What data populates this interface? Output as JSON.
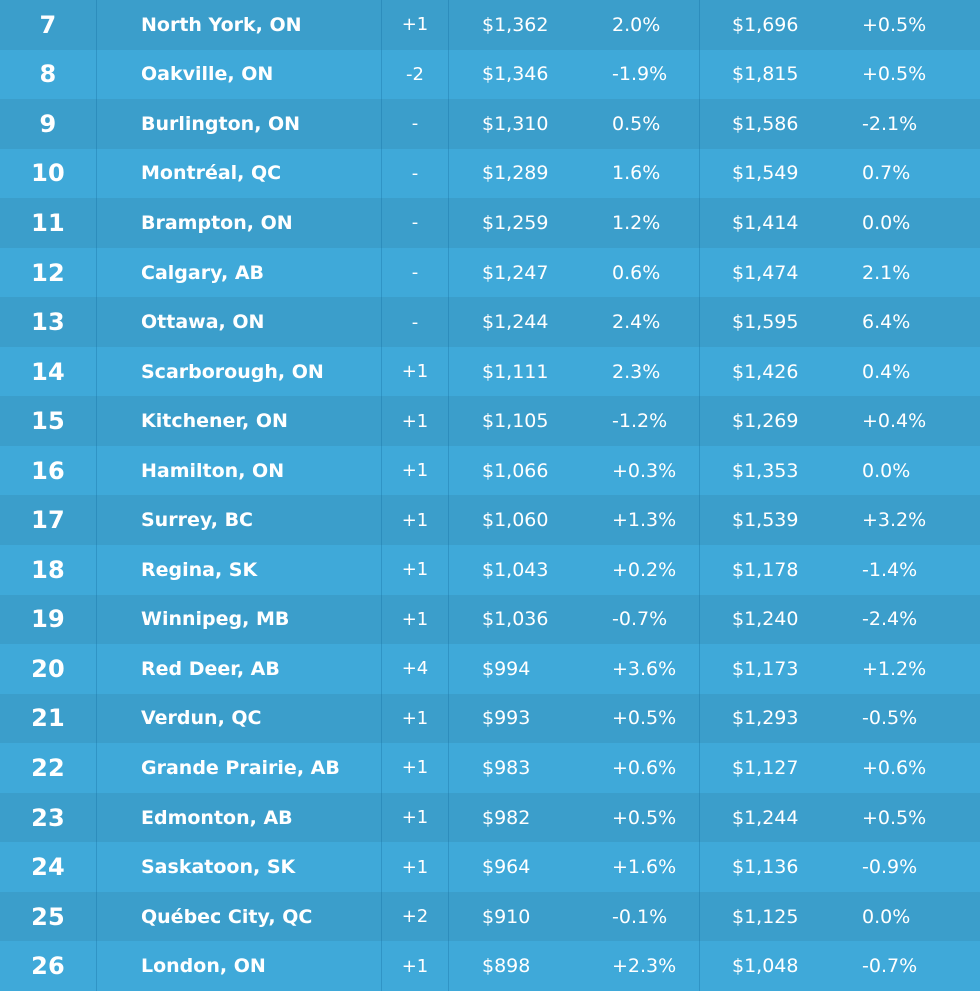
{
  "rows": [
    {
      "rank": "7",
      "city": "North York, ON",
      "change": "+1",
      "one_bed_rent": "$1,362",
      "one_bed_mom": "2.0%",
      "two_bed_rent": "$1,696",
      "two_bed_mom": "+0.5%"
    },
    {
      "rank": "8",
      "city": "Oakville, ON",
      "change": "-2",
      "one_bed_rent": "$1,346",
      "one_bed_mom": "-1.9%",
      "two_bed_rent": "$1,815",
      "two_bed_mom": "+0.5%"
    },
    {
      "rank": "9",
      "city": "Burlington, ON",
      "change": "-",
      "one_bed_rent": "$1,310",
      "one_bed_mom": "0.5%",
      "two_bed_rent": "$1,586",
      "two_bed_mom": "-2.1%"
    },
    {
      "rank": "10",
      "city": "Montréal, QC",
      "change": "-",
      "one_bed_rent": "$1,289",
      "one_bed_mom": "1.6%",
      "two_bed_rent": "$1,549",
      "two_bed_mom": "0.7%"
    },
    {
      "rank": "11",
      "city": "Brampton, ON",
      "change": "-",
      "one_bed_rent": "$1,259",
      "one_bed_mom": "1.2%",
      "two_bed_rent": "$1,414",
      "two_bed_mom": "0.0%"
    },
    {
      "rank": "12",
      "city": "Calgary, AB",
      "change": "-",
      "one_bed_rent": "$1,247",
      "one_bed_mom": "0.6%",
      "two_bed_rent": "$1,474",
      "two_bed_mom": "2.1%"
    },
    {
      "rank": "13",
      "city": "Ottawa, ON",
      "change": "-",
      "one_bed_rent": "$1,244",
      "one_bed_mom": "2.4%",
      "two_bed_rent": "$1,595",
      "two_bed_mom": "6.4%"
    },
    {
      "rank": "14",
      "city": "Scarborough, ON",
      "change": "+1",
      "one_bed_rent": "$1,111",
      "one_bed_mom": "2.3%",
      "two_bed_rent": "$1,426",
      "two_bed_mom": "0.4%"
    },
    {
      "rank": "15",
      "city": "Kitchener, ON",
      "change": "+1",
      "one_bed_rent": "$1,105",
      "one_bed_mom": "-1.2%",
      "two_bed_rent": "$1,269",
      "two_bed_mom": "+0.4%"
    },
    {
      "rank": "16",
      "city": "Hamilton, ON",
      "change": "+1",
      "one_bed_rent": "$1,066",
      "one_bed_mom": "+0.3%",
      "two_bed_rent": "$1,353",
      "two_bed_mom": "0.0%"
    },
    {
      "rank": "17",
      "city": "Surrey, BC",
      "change": "+1",
      "one_bed_rent": "$1,060",
      "one_bed_mom": "+1.3%",
      "two_bed_rent": "$1,539",
      "two_bed_mom": "+3.2%"
    },
    {
      "rank": "18",
      "city": "Regina, SK",
      "change": "+1",
      "one_bed_rent": "$1,043",
      "one_bed_mom": "+0.2%",
      "two_bed_rent": "$1,178",
      "two_bed_mom": "-1.4%"
    },
    {
      "rank": "19",
      "city": "Winnipeg, MB",
      "change": "+1",
      "one_bed_rent": "$1,036",
      "one_bed_mom": "-0.7%",
      "two_bed_rent": "$1,240",
      "two_bed_mom": "-2.4%"
    },
    {
      "rank": "20",
      "city": "Red Deer, AB",
      "change": "+4",
      "one_bed_rent": "$994",
      "one_bed_mom": "+3.6%",
      "two_bed_rent": "$1,173",
      "two_bed_mom": "+1.2%"
    },
    {
      "rank": "21",
      "city": "Verdun, QC",
      "change": "+1",
      "one_bed_rent": "$993",
      "one_bed_mom": "+0.5%",
      "two_bed_rent": "$1,293",
      "two_bed_mom": "-0.5%"
    },
    {
      "rank": "22",
      "city": "Grande Prairie, AB",
      "change": "+1",
      "one_bed_rent": "$983",
      "one_bed_mom": "+0.6%",
      "two_bed_rent": "$1,127",
      "two_bed_mom": "+0.6%"
    },
    {
      "rank": "23",
      "city": "Edmonton, AB",
      "change": "+1",
      "one_bed_rent": "$982",
      "one_bed_mom": "+0.5%",
      "two_bed_rent": "$1,244",
      "two_bed_mom": "+0.5%"
    },
    {
      "rank": "24",
      "city": "Saskatoon, SK",
      "change": "+1",
      "one_bed_rent": "$964",
      "one_bed_mom": "+1.6%",
      "two_bed_rent": "$1,136",
      "two_bed_mom": "-0.9%"
    },
    {
      "rank": "25",
      "city": "Québec City, QC",
      "change": "+2",
      "one_bed_rent": "$910",
      "one_bed_mom": "-0.1%",
      "two_bed_rent": "$1,125",
      "two_bed_mom": "0.0%"
    },
    {
      "rank": "26",
      "city": "London, ON",
      "change": "+1",
      "one_bed_rent": "$898",
      "one_bed_mom": "+2.3%",
      "two_bed_rent": "$1,048",
      "two_bed_mom": "-0.7%"
    }
  ],
  "colors": {
    "row_odd": "#3b9ecb",
    "row_even": "#3fa9d9",
    "text": "#ffffff"
  }
}
